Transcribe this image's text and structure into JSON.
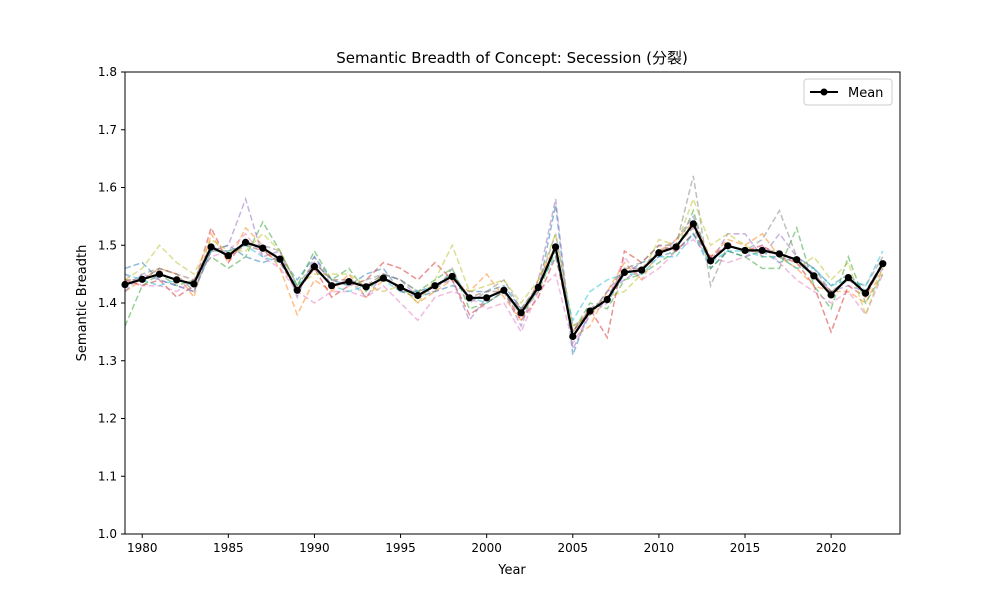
{
  "chart_data": {
    "type": "line",
    "title": "Semantic Breadth of Concept: Secession (分裂)",
    "xlabel": "Year",
    "ylabel": "Semantic Breadth",
    "xlim": [
      1979,
      2024
    ],
    "ylim": [
      1.0,
      1.8
    ],
    "xticks": [
      1980,
      1985,
      1990,
      1995,
      2000,
      2005,
      2010,
      2015,
      2020
    ],
    "yticks": [
      1.0,
      1.1,
      1.2,
      1.3,
      1.4,
      1.5,
      1.6,
      1.7,
      1.8
    ],
    "legend_placement": "top-right",
    "grid": false,
    "x": [
      1979,
      1980,
      1981,
      1982,
      1983,
      1984,
      1985,
      1986,
      1987,
      1988,
      1989,
      1990,
      1991,
      1992,
      1993,
      1994,
      1995,
      1996,
      1997,
      1998,
      1999,
      2000,
      2001,
      2002,
      2003,
      2004,
      2005,
      2006,
      2007,
      2008,
      2009,
      2010,
      2011,
      2012,
      2013,
      2014,
      2015,
      2016,
      2017,
      2018,
      2019,
      2020,
      2021,
      2022,
      2023
    ],
    "mean_series": {
      "name": "Mean",
      "color": "#000000",
      "values": [
        1.432,
        1.441,
        1.45,
        1.44,
        1.433,
        1.497,
        1.482,
        1.505,
        1.495,
        1.476,
        1.422,
        1.463,
        1.43,
        1.437,
        1.428,
        1.443,
        1.427,
        1.413,
        1.43,
        1.446,
        1.409,
        1.409,
        1.422,
        1.383,
        1.427,
        1.497,
        1.342,
        1.386,
        1.406,
        1.453,
        1.457,
        1.487,
        1.497,
        1.537,
        1.473,
        1.499,
        1.491,
        1.491,
        1.485,
        1.475,
        1.447,
        1.414,
        1.444,
        1.417,
        1.468
      ]
    },
    "samples": [
      {
        "color": "#1f77b4",
        "values": [
          1.46,
          1.47,
          1.44,
          1.43,
          1.42,
          1.49,
          1.5,
          1.48,
          1.47,
          1.48,
          1.44,
          1.48,
          1.44,
          1.43,
          1.45,
          1.46,
          1.42,
          1.41,
          1.42,
          1.43,
          1.42,
          1.42,
          1.43,
          1.39,
          1.42,
          1.57,
          1.31,
          1.39,
          1.4,
          1.45,
          1.47,
          1.48,
          1.49,
          1.52,
          1.46,
          1.49,
          1.48,
          1.49,
          1.47,
          1.48,
          1.46,
          1.43,
          1.45,
          1.42,
          1.47
        ]
      },
      {
        "color": "#ff7f0e",
        "values": [
          1.42,
          1.44,
          1.46,
          1.45,
          1.41,
          1.52,
          1.47,
          1.53,
          1.5,
          1.46,
          1.38,
          1.44,
          1.42,
          1.45,
          1.41,
          1.44,
          1.43,
          1.4,
          1.42,
          1.44,
          1.42,
          1.45,
          1.41,
          1.37,
          1.44,
          1.5,
          1.34,
          1.36,
          1.42,
          1.47,
          1.44,
          1.49,
          1.51,
          1.54,
          1.48,
          1.51,
          1.5,
          1.52,
          1.48,
          1.46,
          1.43,
          1.42,
          1.42,
          1.4,
          1.46
        ]
      },
      {
        "color": "#2ca02c",
        "values": [
          1.36,
          1.43,
          1.45,
          1.43,
          1.44,
          1.48,
          1.46,
          1.48,
          1.54,
          1.49,
          1.43,
          1.49,
          1.44,
          1.46,
          1.42,
          1.45,
          1.44,
          1.42,
          1.44,
          1.46,
          1.39,
          1.4,
          1.42,
          1.38,
          1.42,
          1.49,
          1.35,
          1.4,
          1.39,
          1.44,
          1.45,
          1.47,
          1.49,
          1.56,
          1.46,
          1.49,
          1.48,
          1.46,
          1.46,
          1.53,
          1.43,
          1.39,
          1.48,
          1.4,
          1.45
        ]
      },
      {
        "color": "#d62728",
        "values": [
          1.44,
          1.43,
          1.44,
          1.41,
          1.43,
          1.53,
          1.47,
          1.51,
          1.49,
          1.47,
          1.42,
          1.46,
          1.41,
          1.43,
          1.44,
          1.47,
          1.46,
          1.44,
          1.47,
          1.44,
          1.38,
          1.4,
          1.42,
          1.37,
          1.41,
          1.48,
          1.35,
          1.39,
          1.34,
          1.49,
          1.47,
          1.5,
          1.49,
          1.52,
          1.48,
          1.5,
          1.49,
          1.5,
          1.48,
          1.47,
          1.43,
          1.35,
          1.43,
          1.41,
          1.47
        ]
      },
      {
        "color": "#9467bd",
        "values": [
          1.42,
          1.45,
          1.44,
          1.43,
          1.42,
          1.49,
          1.5,
          1.58,
          1.48,
          1.49,
          1.41,
          1.48,
          1.43,
          1.44,
          1.41,
          1.45,
          1.44,
          1.41,
          1.43,
          1.44,
          1.37,
          1.41,
          1.42,
          1.36,
          1.44,
          1.58,
          1.32,
          1.38,
          1.42,
          1.44,
          1.46,
          1.48,
          1.51,
          1.55,
          1.47,
          1.52,
          1.52,
          1.48,
          1.52,
          1.48,
          1.45,
          1.42,
          1.43,
          1.42,
          1.46
        ]
      },
      {
        "color": "#8c564b",
        "values": [
          1.44,
          1.44,
          1.46,
          1.45,
          1.44,
          1.5,
          1.48,
          1.5,
          1.49,
          1.48,
          1.42,
          1.47,
          1.44,
          1.44,
          1.43,
          1.45,
          1.42,
          1.42,
          1.43,
          1.45,
          1.41,
          1.42,
          1.42,
          1.39,
          1.43,
          1.5,
          1.35,
          1.39,
          1.41,
          1.46,
          1.46,
          1.49,
          1.5,
          1.53,
          1.47,
          1.5,
          1.49,
          1.49,
          1.49,
          1.47,
          1.45,
          1.42,
          1.44,
          1.42,
          1.47
        ]
      },
      {
        "color": "#e377c2",
        "values": [
          1.45,
          1.43,
          1.43,
          1.42,
          1.44,
          1.48,
          1.49,
          1.52,
          1.48,
          1.46,
          1.42,
          1.4,
          1.42,
          1.42,
          1.41,
          1.43,
          1.4,
          1.37,
          1.41,
          1.42,
          1.41,
          1.39,
          1.4,
          1.35,
          1.42,
          1.45,
          1.33,
          1.38,
          1.4,
          1.48,
          1.44,
          1.46,
          1.49,
          1.51,
          1.48,
          1.47,
          1.48,
          1.5,
          1.47,
          1.44,
          1.42,
          1.4,
          1.42,
          1.38,
          1.45
        ]
      },
      {
        "color": "#7f7f7f",
        "values": [
          1.43,
          1.45,
          1.46,
          1.45,
          1.42,
          1.49,
          1.49,
          1.5,
          1.5,
          1.49,
          1.43,
          1.47,
          1.44,
          1.43,
          1.44,
          1.45,
          1.44,
          1.42,
          1.42,
          1.46,
          1.4,
          1.42,
          1.44,
          1.39,
          1.43,
          1.52,
          1.36,
          1.38,
          1.42,
          1.46,
          1.47,
          1.5,
          1.5,
          1.62,
          1.43,
          1.5,
          1.49,
          1.51,
          1.56,
          1.48,
          1.46,
          1.42,
          1.44,
          1.43,
          1.48
        ]
      },
      {
        "color": "#bcbd22",
        "values": [
          1.44,
          1.46,
          1.5,
          1.47,
          1.45,
          1.51,
          1.49,
          1.49,
          1.52,
          1.49,
          1.43,
          1.45,
          1.45,
          1.45,
          1.43,
          1.42,
          1.43,
          1.4,
          1.44,
          1.5,
          1.42,
          1.43,
          1.44,
          1.4,
          1.44,
          1.52,
          1.36,
          1.38,
          1.41,
          1.42,
          1.45,
          1.51,
          1.5,
          1.58,
          1.5,
          1.52,
          1.5,
          1.48,
          1.48,
          1.46,
          1.48,
          1.44,
          1.47,
          1.38,
          1.46
        ]
      },
      {
        "color": "#17becf",
        "values": [
          1.45,
          1.44,
          1.43,
          1.44,
          1.43,
          1.49,
          1.49,
          1.5,
          1.48,
          1.47,
          1.43,
          1.46,
          1.43,
          1.42,
          1.43,
          1.44,
          1.42,
          1.42,
          1.43,
          1.45,
          1.41,
          1.4,
          1.42,
          1.38,
          1.43,
          1.48,
          1.37,
          1.42,
          1.44,
          1.45,
          1.45,
          1.48,
          1.48,
          1.52,
          1.47,
          1.49,
          1.49,
          1.48,
          1.48,
          1.46,
          1.46,
          1.43,
          1.44,
          1.43,
          1.49
        ]
      }
    ]
  }
}
